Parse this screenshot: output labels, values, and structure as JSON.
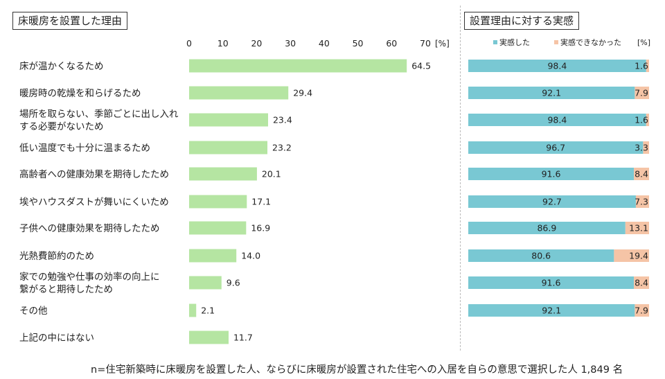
{
  "left_panel": {
    "title": "床暖房を設置した理由"
  },
  "right_panel": {
    "title": "設置理由に対する実感"
  },
  "footnote": "n=住宅新築時に床暖房を設置した人、ならびに床暖房が設置された住宅への入居を自らの意思で選択した人 1,849 名",
  "colors": {
    "bar": "#b5e5a2",
    "felt": "#79c8d3",
    "not_felt": "#f5c4a6",
    "text": "#222222"
  },
  "chart_data": [
    {
      "type": "bar",
      "orientation": "horizontal",
      "title": "床暖房を設置した理由",
      "unit_label": "[%]",
      "xlim": [
        0,
        70
      ],
      "ticks": [
        0,
        10,
        20,
        30,
        40,
        50,
        60,
        70
      ],
      "grid": false,
      "categories": [
        [
          "床が温かくなるため"
        ],
        [
          "暖房時の乾燥を和らげるため"
        ],
        [
          "場所を取らない、季節ごとに出し入れ",
          "する必要がないため"
        ],
        [
          "低い温度でも十分に温まるため"
        ],
        [
          "高齢者への健康効果を期待したため"
        ],
        [
          "埃やハウスダストが舞いにくいため"
        ],
        [
          "子供への健康効果を期待したため"
        ],
        [
          "光熱費節約のため"
        ],
        [
          "家での勉強や仕事の効率の向上に",
          "繋がると期待したため"
        ],
        [
          "その他"
        ],
        [
          "上記の中にはない"
        ]
      ],
      "values": [
        64.5,
        29.4,
        23.4,
        23.2,
        20.1,
        17.1,
        16.9,
        14.0,
        9.6,
        2.1,
        11.7
      ],
      "value_labels": [
        "64.5",
        "29.4",
        "23.4",
        "23.2",
        "20.1",
        "17.1",
        "16.9",
        "14.0",
        "9.6",
        "2.1",
        "11.7"
      ]
    },
    {
      "type": "bar",
      "orientation": "horizontal",
      "stacked": true,
      "title": "設置理由に対する実感",
      "unit_label": "[%]",
      "xlim": [
        0,
        100
      ],
      "legend_position": "top",
      "series": [
        {
          "name": "実感した",
          "values": [
            98.4,
            92.1,
            98.4,
            96.7,
            91.6,
            92.7,
            86.9,
            80.6,
            91.6,
            92.1
          ],
          "labels": [
            "98.4",
            "92.1",
            "98.4",
            "96.7",
            "91.6",
            "92.7",
            "86.9",
            "80.6",
            "91.6",
            "92.1"
          ]
        },
        {
          "name": "実感できなかった",
          "values": [
            1.6,
            7.9,
            1.6,
            3.3,
            8.4,
            7.3,
            13.1,
            19.4,
            8.4,
            7.9
          ],
          "labels": [
            "1.6",
            "7.9",
            "1.6",
            "3.3",
            "8.4",
            "7.3",
            "13.1",
            "19.4",
            "8.4",
            "7.9"
          ]
        }
      ]
    }
  ]
}
